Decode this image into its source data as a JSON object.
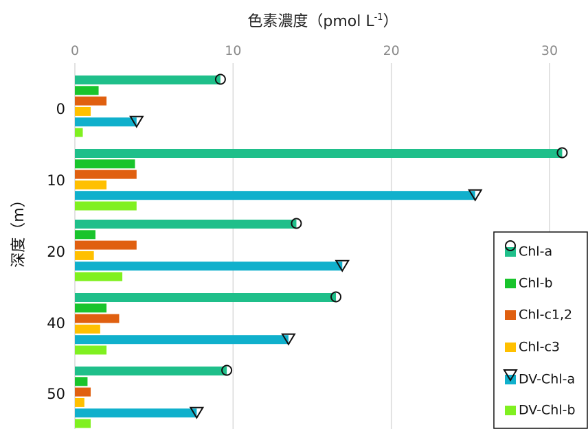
{
  "chart_data": {
    "type": "bar",
    "orientation": "horizontal",
    "title": "色素濃度（pmol L-1）",
    "title_main": "色素濃度（pmol L",
    "title_sup": "-1",
    "title_tail": "）",
    "ylabel": "深度（m）",
    "xlim": [
      0,
      32
    ],
    "xticks": [
      0,
      10,
      20,
      30
    ],
    "grid": true,
    "legend_position": "right",
    "categories": [
      "0",
      "10",
      "20",
      "40",
      "50"
    ],
    "series": [
      {
        "name": "Chl-a",
        "color": "#1fbf8a",
        "marker": "circle",
        "values": [
          9.2,
          30.8,
          14.0,
          16.5,
          9.6
        ]
      },
      {
        "name": "Chl-b",
        "color": "#19c42c",
        "marker": "",
        "values": [
          1.5,
          3.8,
          1.3,
          2.0,
          0.8
        ]
      },
      {
        "name": "Chl-c1,2",
        "color": "#e06010",
        "marker": "",
        "values": [
          2.0,
          3.9,
          3.9,
          2.8,
          1.0
        ]
      },
      {
        "name": "Chl-c3",
        "color": "#ffc000",
        "marker": "",
        "values": [
          1.0,
          2.0,
          1.2,
          1.6,
          0.6
        ]
      },
      {
        "name": "DV-Chl-a",
        "color": "#10b0cc",
        "marker": "triangle",
        "values": [
          3.9,
          25.3,
          16.9,
          13.5,
          7.7
        ]
      },
      {
        "name": "DV-Chl-b",
        "color": "#80f020",
        "marker": "",
        "values": [
          0.5,
          3.9,
          3.0,
          2.0,
          1.0
        ]
      }
    ]
  }
}
